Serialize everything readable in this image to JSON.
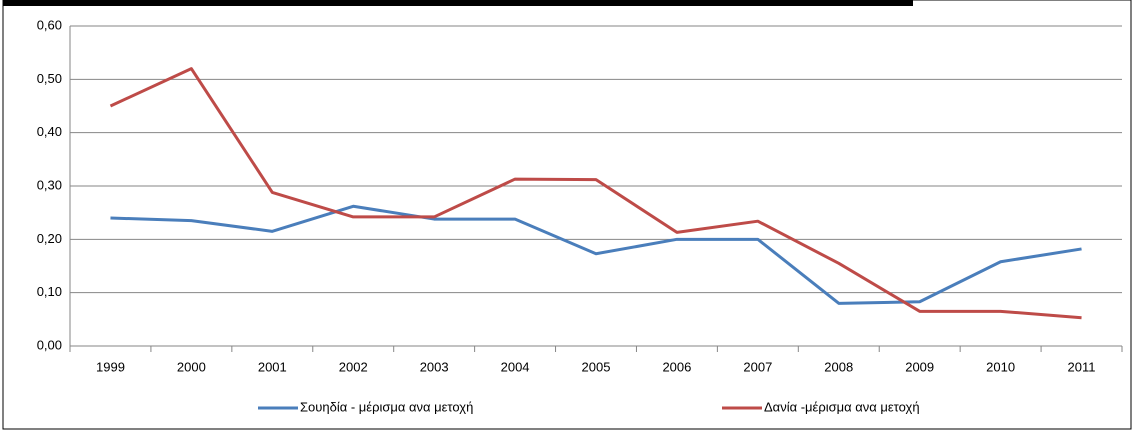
{
  "chart_data": {
    "type": "line",
    "categories": [
      "1999",
      "2000",
      "2001",
      "2002",
      "2003",
      "2004",
      "2005",
      "2006",
      "2007",
      "2008",
      "2009",
      "2010",
      "2011"
    ],
    "series": [
      {
        "name": "Σουηδία - μέρισμα ανα μετοχή",
        "color": "#4a7ebb",
        "values": [
          0.24,
          0.235,
          0.215,
          0.262,
          0.238,
          0.238,
          0.173,
          0.2,
          0.2,
          0.08,
          0.083,
          0.158,
          0.182
        ]
      },
      {
        "name": "Δανία -μέρισμα ανα μετοχή",
        "color": "#be4b48",
        "values": [
          0.45,
          0.52,
          0.288,
          0.242,
          0.242,
          0.313,
          0.312,
          0.213,
          0.234,
          0.155,
          0.065,
          0.065,
          0.053
        ]
      }
    ],
    "ylim": [
      0,
      0.6
    ],
    "yticks": [
      {
        "value": 0,
        "label": "0,00"
      },
      {
        "value": 0.1,
        "label": "0,10"
      },
      {
        "value": 0.2,
        "label": "0,20"
      },
      {
        "value": 0.3,
        "label": "0,30"
      },
      {
        "value": 0.4,
        "label": "0,40"
      },
      {
        "value": 0.5,
        "label": "0,50"
      },
      {
        "value": 0.6,
        "label": "0,60"
      }
    ],
    "grid": true,
    "legend": "bottom"
  }
}
